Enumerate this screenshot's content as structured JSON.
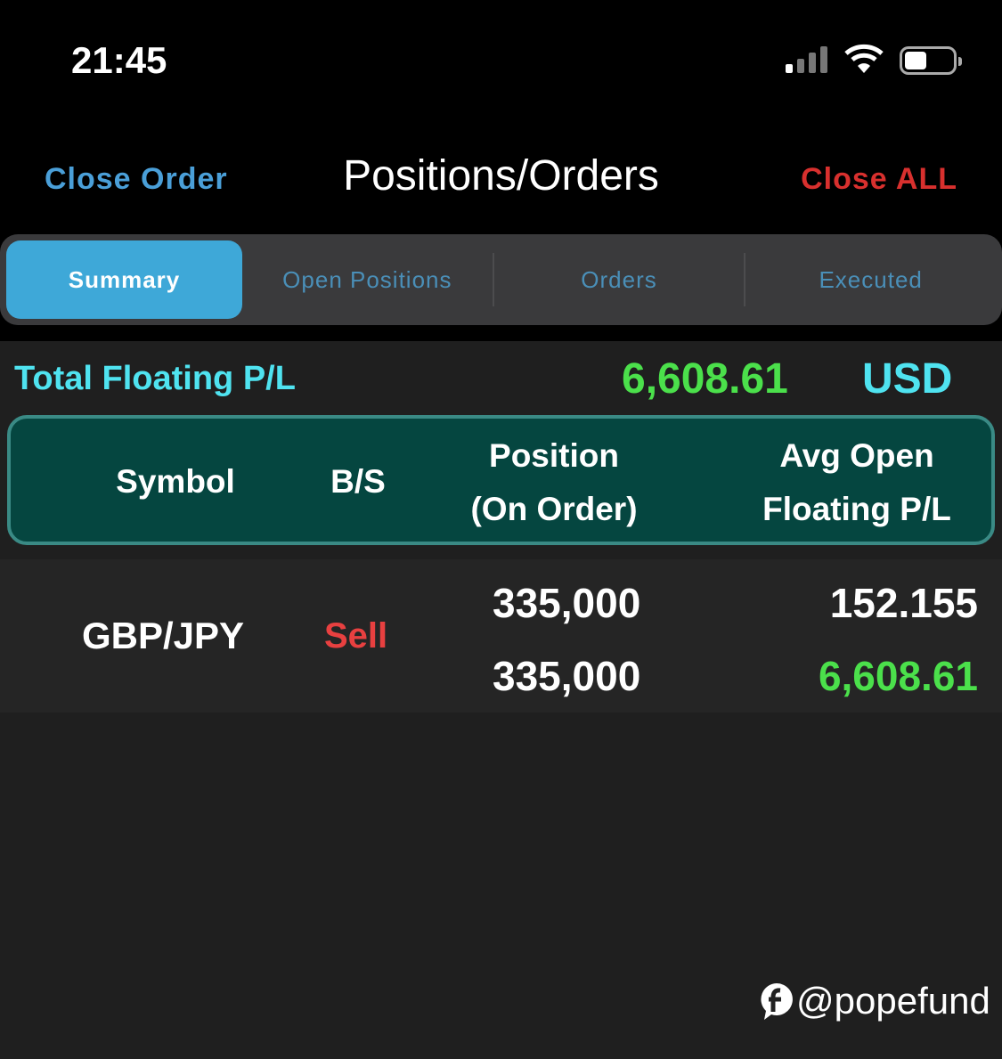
{
  "status_bar": {
    "time": "21:45",
    "signal_icon": "cellular-signal-icon",
    "wifi_icon": "wifi-icon",
    "battery_icon": "battery-icon",
    "battery_level": 0.4
  },
  "nav": {
    "left_button": "Close Order",
    "title": "Positions/Orders",
    "right_button": "Close ALL"
  },
  "tabs": [
    {
      "label": "Summary",
      "selected": true
    },
    {
      "label": "Open Positions"
    },
    {
      "label": "Orders"
    },
    {
      "label": "Executed"
    }
  ],
  "summary": {
    "label": "Total Floating P/L",
    "value": "6,608.61",
    "currency": "USD"
  },
  "table": {
    "headers": {
      "symbol": "Symbol",
      "bs": "B/S",
      "position_line1": "Position",
      "position_line2": "(On Order)",
      "avg_line1": "Avg Open",
      "avg_line2": "Floating P/L"
    },
    "rows": [
      {
        "symbol": "GBP/JPY",
        "side": "Sell",
        "position": "335,000",
        "on_order": "335,000",
        "avg_open": "152.155",
        "floating_pl": "6,608.61"
      }
    ]
  },
  "watermark": "@popefund",
  "colors": {
    "accent_blue": "#3ea8d8",
    "cyan": "#4fe3f0",
    "profit_green": "#4be04b",
    "sell_red": "#e84040",
    "header_teal": "#054640"
  }
}
